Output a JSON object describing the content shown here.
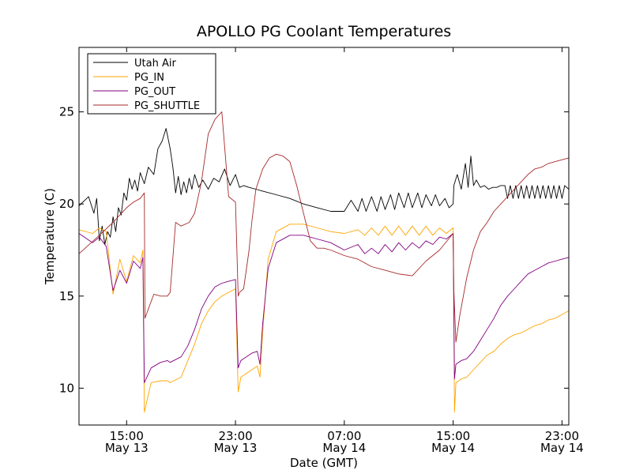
{
  "chart_data": {
    "type": "line",
    "title": "APOLLO PG Coolant Temperatures",
    "xlabel": "Date (GMT)",
    "ylabel": "Temperature (C)",
    "x_unit": "hours since May 13 00:00 GMT",
    "xlim": [
      11.5,
      47.5
    ],
    "ylim": [
      8,
      28.5
    ],
    "yticks": [
      10,
      15,
      20,
      25
    ],
    "xticks": [
      {
        "value": 15,
        "time": "15:00",
        "date": "May 13"
      },
      {
        "value": 23,
        "time": "23:00",
        "date": "May 13"
      },
      {
        "value": 31,
        "time": "07:00",
        "date": "May 14"
      },
      {
        "value": 39,
        "time": "15:00",
        "date": "May 14"
      },
      {
        "value": 47,
        "time": "23:00",
        "date": "May 14"
      }
    ],
    "legend_position": "top-left",
    "series": [
      {
        "name": "Utah Air",
        "color": "#000000",
        "x": [
          11.5,
          12.2,
          12.6,
          12.8,
          13.0,
          13.2,
          13.4,
          13.6,
          13.8,
          14.0,
          14.2,
          14.4,
          14.6,
          14.8,
          15.0,
          15.2,
          15.4,
          15.6,
          15.8,
          16.0,
          16.3,
          16.6,
          17.0,
          17.3,
          17.6,
          17.9,
          18.2,
          18.4,
          18.6,
          18.8,
          19.0,
          19.2,
          19.4,
          19.6,
          19.8,
          20.0,
          20.3,
          20.6,
          21.0,
          21.4,
          21.8,
          22.2,
          22.6,
          23.0,
          23.3,
          23.6,
          24.0,
          24.5,
          25.0,
          26.0,
          27.0,
          28.0,
          29.0,
          30.0,
          31.0,
          31.5,
          32.0,
          32.3,
          32.6,
          33.0,
          33.4,
          33.7,
          34.0,
          34.4,
          34.7,
          35.0,
          35.4,
          35.7,
          36.0,
          36.4,
          36.7,
          37.0,
          37.4,
          37.7,
          38.0,
          38.4,
          38.7,
          39.0,
          39.05,
          39.3,
          39.6,
          39.9,
          40.1,
          40.3,
          40.5,
          40.7,
          41.0,
          41.3,
          41.6,
          41.9,
          42.2,
          42.5,
          42.8,
          43.0,
          43.2,
          43.4,
          43.6,
          43.8,
          44.0,
          44.2,
          44.4,
          44.6,
          44.8,
          45.0,
          45.2,
          45.4,
          45.6,
          45.8,
          46.0,
          46.2,
          46.4,
          46.6,
          46.8,
          47.0,
          47.2,
          47.5
        ],
        "y": [
          19.9,
          20.4,
          19.5,
          20.3,
          18.0,
          18.8,
          17.8,
          18.5,
          18.2,
          19.3,
          18.5,
          19.8,
          19.4,
          20.6,
          20.2,
          21.4,
          20.8,
          21.3,
          20.7,
          21.7,
          21.1,
          22.0,
          21.6,
          23.0,
          23.4,
          24.1,
          23.0,
          22.0,
          20.6,
          21.5,
          20.5,
          21.2,
          20.6,
          21.4,
          20.8,
          21.6,
          20.9,
          21.3,
          20.8,
          21.4,
          21.2,
          21.9,
          21.0,
          21.6,
          20.9,
          21.0,
          20.9,
          20.8,
          20.7,
          20.5,
          20.3,
          20.0,
          19.8,
          19.6,
          19.6,
          20.2,
          19.6,
          20.3,
          19.6,
          20.4,
          19.6,
          20.4,
          19.7,
          20.5,
          19.7,
          20.6,
          19.8,
          20.6,
          19.8,
          20.6,
          19.8,
          20.5,
          19.9,
          20.5,
          19.9,
          20.3,
          19.8,
          20.0,
          21.0,
          21.6,
          20.8,
          22.2,
          20.9,
          22.6,
          21.0,
          21.3,
          20.9,
          21.0,
          20.8,
          20.9,
          20.9,
          21.0,
          21.0,
          20.3,
          21.0,
          20.3,
          21.0,
          20.3,
          21.0,
          20.3,
          21.0,
          20.3,
          21.0,
          20.3,
          21.0,
          20.3,
          21.0,
          20.3,
          21.0,
          20.3,
          21.0,
          20.3,
          21.0,
          20.3,
          21.0,
          20.8
        ]
      },
      {
        "name": "PG_IN",
        "color": "#ffa500",
        "x": [
          11.5,
          12.5,
          13.0,
          13.5,
          14.0,
          14.5,
          15.0,
          15.5,
          16.0,
          16.2,
          16.3,
          16.8,
          17.5,
          18.0,
          18.2,
          19.0,
          19.5,
          20.0,
          20.5,
          21.0,
          21.5,
          22.0,
          22.5,
          23.0,
          23.2,
          23.4,
          23.8,
          24.2,
          24.6,
          24.8,
          25.0,
          25.4,
          26.0,
          27.0,
          28.0,
          29.0,
          30.0,
          31.0,
          32.0,
          32.5,
          33.0,
          33.5,
          34.0,
          34.5,
          35.0,
          35.5,
          36.0,
          36.5,
          37.0,
          37.5,
          38.0,
          38.5,
          39.0,
          39.1,
          39.2,
          39.6,
          40.0,
          40.5,
          41.0,
          41.5,
          42.0,
          42.5,
          43.0,
          43.5,
          44.0,
          44.5,
          45.0,
          45.5,
          46.0,
          46.5,
          47.0,
          47.5
        ],
        "y": [
          18.6,
          18.4,
          18.7,
          18.5,
          15.1,
          17.0,
          15.8,
          17.2,
          16.8,
          17.5,
          8.7,
          10.3,
          10.4,
          10.4,
          10.3,
          10.6,
          11.5,
          12.4,
          13.5,
          14.2,
          14.7,
          15.0,
          15.2,
          15.4,
          9.8,
          10.6,
          10.8,
          11.0,
          11.2,
          10.6,
          13.0,
          17.0,
          18.5,
          18.9,
          18.9,
          18.7,
          18.5,
          18.4,
          18.6,
          18.3,
          18.7,
          18.3,
          18.8,
          18.3,
          18.8,
          18.3,
          18.8,
          18.3,
          18.8,
          18.3,
          18.7,
          18.4,
          18.7,
          8.7,
          10.3,
          10.5,
          10.6,
          11.0,
          11.4,
          11.8,
          12.0,
          12.4,
          12.7,
          12.9,
          13.0,
          13.2,
          13.4,
          13.5,
          13.7,
          13.8,
          14.0,
          14.2
        ]
      },
      {
        "name": "PG_OUT",
        "color": "#800080",
        "x": [
          11.5,
          12.5,
          13.0,
          13.5,
          14.0,
          14.5,
          15.0,
          15.5,
          16.0,
          16.2,
          16.3,
          16.8,
          17.5,
          18.0,
          18.2,
          19.0,
          19.5,
          20.0,
          20.5,
          21.0,
          21.5,
          22.0,
          22.5,
          23.0,
          23.2,
          23.4,
          23.8,
          24.2,
          24.6,
          24.8,
          25.0,
          25.4,
          26.0,
          27.0,
          28.0,
          29.0,
          30.0,
          31.0,
          32.0,
          32.5,
          33.0,
          33.5,
          34.0,
          34.5,
          35.0,
          35.5,
          36.0,
          36.5,
          37.0,
          37.5,
          38.0,
          38.5,
          39.0,
          39.1,
          39.2,
          39.6,
          40.0,
          40.5,
          41.0,
          41.5,
          42.0,
          42.5,
          43.0,
          43.5,
          44.0,
          44.5,
          45.0,
          45.5,
          46.0,
          46.5,
          47.0,
          47.5
        ],
        "y": [
          18.4,
          17.9,
          18.2,
          17.7,
          15.3,
          16.4,
          15.7,
          16.9,
          16.5,
          17.1,
          10.3,
          11.1,
          11.4,
          11.5,
          11.4,
          11.7,
          12.3,
          13.2,
          14.3,
          15.0,
          15.5,
          15.7,
          15.8,
          15.9,
          11.1,
          11.5,
          11.7,
          11.9,
          12.0,
          11.3,
          13.5,
          16.5,
          17.9,
          18.3,
          18.3,
          18.1,
          17.9,
          17.5,
          17.8,
          17.3,
          17.6,
          17.3,
          17.8,
          17.4,
          17.9,
          17.5,
          17.9,
          17.6,
          18.0,
          17.8,
          18.2,
          18.1,
          18.4,
          10.5,
          11.3,
          11.5,
          11.6,
          12.0,
          12.6,
          13.2,
          13.8,
          14.5,
          15.0,
          15.4,
          15.8,
          16.2,
          16.4,
          16.6,
          16.8,
          16.9,
          17.0,
          17.1
        ]
      },
      {
        "name": "PG_SHUTTLE",
        "color": "#a52a2a",
        "x": [
          11.5,
          13.0,
          14.0,
          15.0,
          15.5,
          16.0,
          16.3,
          16.35,
          17.0,
          17.5,
          18.0,
          18.2,
          18.6,
          19.0,
          19.6,
          20.0,
          20.5,
          21.0,
          21.5,
          22.0,
          22.5,
          23.0,
          23.2,
          23.3,
          23.6,
          24.0,
          24.2,
          24.5,
          25.0,
          25.5,
          26.0,
          26.5,
          27.0,
          27.5,
          28.0,
          28.5,
          29.0,
          29.5,
          30.0,
          31.0,
          32.0,
          33.0,
          34.0,
          35.0,
          36.0,
          37.0,
          38.0,
          39.0,
          39.05,
          39.2,
          39.5,
          40.0,
          40.5,
          41.0,
          41.5,
          42.0,
          42.5,
          43.0,
          43.5,
          44.0,
          44.5,
          45.0,
          45.5,
          46.0,
          46.5,
          47.0,
          47.5
        ],
        "y": [
          17.3,
          18.3,
          19.0,
          19.8,
          20.1,
          20.3,
          20.6,
          13.8,
          15.1,
          15.0,
          15.0,
          15.2,
          19.0,
          18.8,
          19.0,
          19.5,
          21.2,
          23.8,
          24.6,
          25.0,
          20.4,
          20.1,
          15.0,
          15.2,
          15.4,
          17.5,
          19.0,
          20.8,
          21.9,
          22.5,
          22.7,
          22.6,
          22.3,
          21.0,
          19.5,
          18.0,
          17.6,
          17.6,
          17.5,
          17.2,
          17.0,
          16.6,
          16.4,
          16.2,
          16.1,
          16.9,
          17.5,
          18.4,
          15.3,
          12.5,
          14.0,
          16.0,
          17.5,
          18.5,
          19.0,
          19.6,
          20.0,
          20.4,
          20.8,
          21.2,
          21.6,
          21.9,
          22.0,
          22.2,
          22.3,
          22.4,
          22.5
        ]
      }
    ]
  }
}
